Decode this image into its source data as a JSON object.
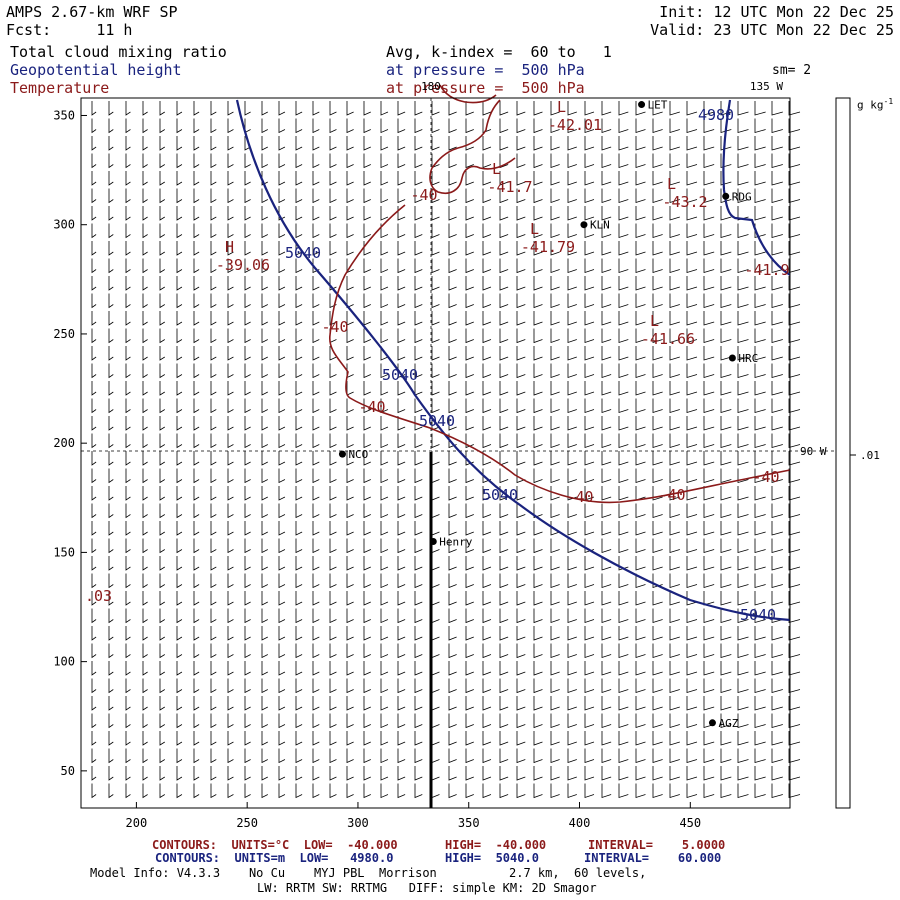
{
  "header": {
    "model": "AMPS 2.67-km WRF SP",
    "fcst_label": "Fcst:",
    "fcst_value": "11 h",
    "init": "Init: 12 UTC Mon 22 Dec 25",
    "valid": "Valid: 23 UTC Mon 22 Dec 25",
    "field1": "Total cloud mixing ratio",
    "field2": "Geopotential height",
    "field3": "Temperature",
    "avg": "Avg, k-index =  60 to   1",
    "pressure1": "at pressure =  500 hPa",
    "pressure2": "at pressure =  500 hPa",
    "sm": "sm= 2"
  },
  "colors": {
    "height": "#1a237e",
    "temperature": "#8b1a1a",
    "frame": "#000000"
  },
  "map": {
    "x_ticks": [
      "200",
      "250",
      "300",
      "350",
      "400",
      "450"
    ],
    "y_ticks": [
      "350",
      "300",
      "250",
      "200",
      "150",
      "100",
      "50"
    ],
    "lon_labels": {
      "top": "180",
      "right_top": "135 W",
      "right_mid": "90 W"
    },
    "stations": [
      {
        "name": "LET",
        "x": 428,
        "y": 355
      },
      {
        "name": "RDG",
        "x": 466,
        "y": 313
      },
      {
        "name": "KLN",
        "x": 402,
        "y": 300
      },
      {
        "name": "HRC",
        "x": 469,
        "y": 239
      },
      {
        "name": "NCO",
        "x": 293,
        "y": 195
      },
      {
        "name": "Henry",
        "x": 334,
        "y": 155
      },
      {
        "name": "AGZ",
        "x": 460,
        "y": 72
      }
    ],
    "height_labels": [
      "4980",
      "5040",
      "5040",
      "5040",
      "5040",
      "5040"
    ],
    "temp_labels": [
      "-40",
      "-40",
      "-40",
      "-40",
      "-40",
      "-40",
      "-41.9"
    ],
    "extrema": [
      {
        "type": "L",
        "value": "-42.01"
      },
      {
        "type": "L",
        "value": "-41.7"
      },
      {
        "type": "L",
        "value": "-43.2"
      },
      {
        "type": "L",
        "value": "-41.79"
      },
      {
        "type": "H",
        "value": "-39.06"
      },
      {
        "type": "L",
        "value": "-41.66"
      }
    ],
    "edge_label": ".03"
  },
  "colorbar": {
    "unit": "g kg",
    "unit_exp": "-1",
    "tick": ".01"
  },
  "footer": {
    "line1_a": "CONTOURS:  UNITS=°C  LOW=  -40.000",
    "line1_b": "HIGH=  -40.000",
    "line1_c": "INTERVAL=    5.0000",
    "line2_a": "CONTOURS:  UNITS=m  LOW=   4980.0",
    "line2_b": "HIGH=  5040.0",
    "line2_c": "INTERVAL=    60.000",
    "line3": "Model Info: V4.3.3    No Cu    MYJ PBL  Morrison          2.7 km,  60 levels,",
    "line4": "LW: RRTM SW: RRTMG   DIFF: simple KM: 2D Smagor"
  }
}
